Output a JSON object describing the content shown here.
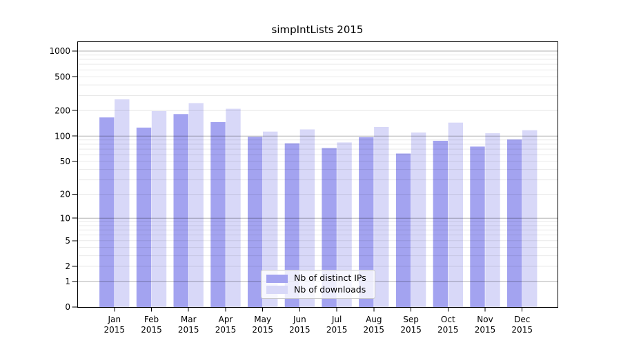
{
  "chart_data": {
    "type": "bar",
    "title": "simpIntLists 2015",
    "categories": [
      "Jan",
      "Feb",
      "Mar",
      "Apr",
      "May",
      "Jun",
      "Jul",
      "Aug",
      "Sep",
      "Oct",
      "Nov",
      "Dec"
    ],
    "x_tick_second_line": "2015",
    "series": [
      {
        "name": "Nb of distinct IPs",
        "key": "distinct-ips",
        "color": "#a3a3f0",
        "values": [
          166,
          126,
          182,
          146,
          98,
          82,
          72,
          97,
          62,
          88,
          75,
          91
        ]
      },
      {
        "name": "Nb of downloads",
        "key": "downloads",
        "color": "#d8d8f8",
        "values": [
          271,
          197,
          245,
          210,
          113,
          120,
          84,
          128,
          110,
          144,
          108,
          117
        ]
      }
    ],
    "xlabel": "",
    "ylabel": "",
    "y_scale": "symlog-log1p",
    "y_ticks": [
      0,
      1,
      2,
      5,
      10,
      20,
      50,
      100,
      200,
      500,
      1000
    ],
    "ylim": [
      0,
      1300
    ],
    "grid": {
      "visible": true,
      "major_color": "#b1b1b1",
      "minor_color": "#e8e8e8"
    },
    "legend": {
      "position": "lower center",
      "border_color": "#c9c9c9",
      "background": "#ffffff"
    }
  }
}
